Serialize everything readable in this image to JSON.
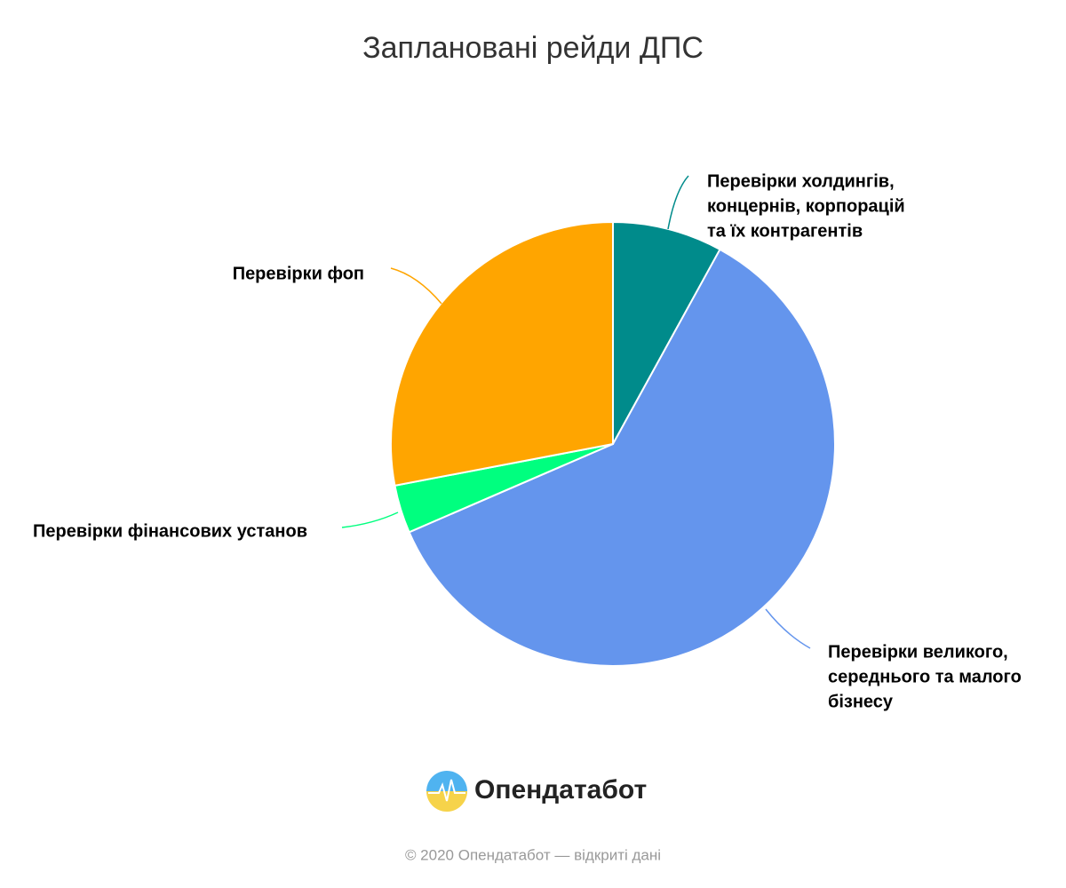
{
  "chart_data": {
    "type": "pie",
    "title": "Заплановані рейди ДПС",
    "categories": [
      [
        "Перевірки холдингів,",
        "концернів, корпорацій",
        "та їх контрагентів"
      ],
      [
        "Перевірки великого,",
        "середнього та малого",
        "бізнесу"
      ],
      [
        "Перевірки фінансових установ"
      ],
      [
        "Перевірки фоп"
      ]
    ],
    "values": [
      8,
      60.5,
      3.5,
      28
    ],
    "colors": [
      "#008b8b",
      "#6495ed",
      "#00ff7f",
      "#ffa500"
    ],
    "logo": "Опендатабот",
    "credit": "© 2020 Опендатабот — відкриті дані"
  }
}
